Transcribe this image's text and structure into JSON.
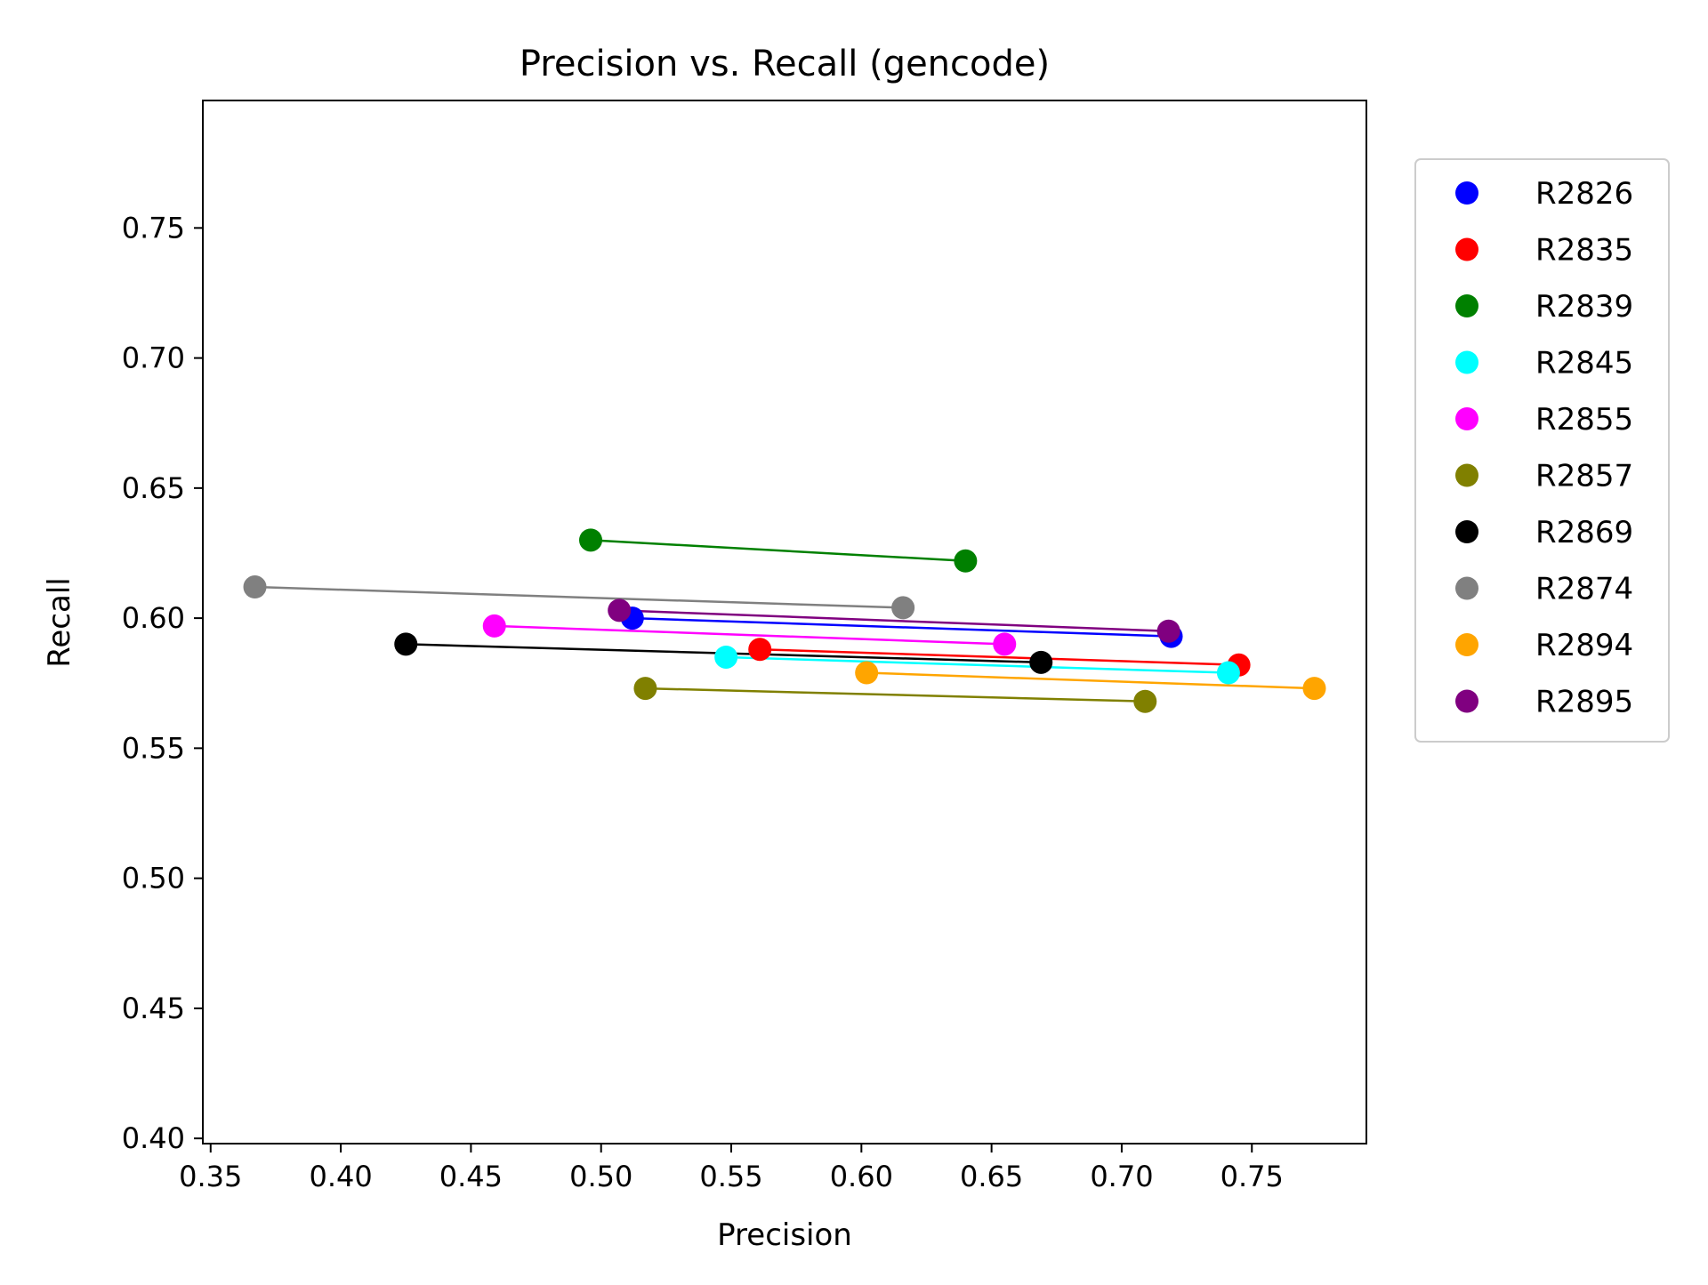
{
  "chart_data": {
    "type": "scatter",
    "title": "Precision vs. Recall (gencode)",
    "xlabel": "Precision",
    "ylabel": "Recall",
    "xlim": [
      0.347,
      0.794
    ],
    "ylim": [
      0.398,
      0.799
    ],
    "xticks": [
      0.35,
      0.4,
      0.45,
      0.5,
      0.55,
      0.6,
      0.65,
      0.7,
      0.75
    ],
    "xtick_labels": [
      "0.35",
      "0.40",
      "0.45",
      "0.50",
      "0.55",
      "0.60",
      "0.65",
      "0.70",
      "0.75"
    ],
    "yticks": [
      0.4,
      0.45,
      0.5,
      0.55,
      0.6,
      0.65,
      0.7,
      0.75
    ],
    "ytick_labels": [
      "0.40",
      "0.45",
      "0.50",
      "0.55",
      "0.60",
      "0.65",
      "0.70",
      "0.75"
    ],
    "legend_position": "outside-right",
    "grid": false,
    "series": [
      {
        "name": "R2826",
        "color": "#0000ff",
        "points": [
          {
            "x": 0.512,
            "y": 0.6
          },
          {
            "x": 0.719,
            "y": 0.593
          }
        ]
      },
      {
        "name": "R2835",
        "color": "#ff0000",
        "points": [
          {
            "x": 0.561,
            "y": 0.588
          },
          {
            "x": 0.745,
            "y": 0.582
          }
        ]
      },
      {
        "name": "R2839",
        "color": "#008000",
        "points": [
          {
            "x": 0.496,
            "y": 0.63
          },
          {
            "x": 0.64,
            "y": 0.622
          }
        ]
      },
      {
        "name": "R2845",
        "color": "#00ffff",
        "points": [
          {
            "x": 0.548,
            "y": 0.585
          },
          {
            "x": 0.741,
            "y": 0.579
          }
        ]
      },
      {
        "name": "R2855",
        "color": "#ff00ff",
        "points": [
          {
            "x": 0.459,
            "y": 0.597
          },
          {
            "x": 0.655,
            "y": 0.59
          }
        ]
      },
      {
        "name": "R2857",
        "color": "#808000",
        "points": [
          {
            "x": 0.517,
            "y": 0.573
          },
          {
            "x": 0.709,
            "y": 0.568
          }
        ]
      },
      {
        "name": "R2869",
        "color": "#000000",
        "points": [
          {
            "x": 0.425,
            "y": 0.59
          },
          {
            "x": 0.669,
            "y": 0.583
          }
        ]
      },
      {
        "name": "R2874",
        "color": "#808080",
        "points": [
          {
            "x": 0.367,
            "y": 0.612
          },
          {
            "x": 0.616,
            "y": 0.604
          }
        ]
      },
      {
        "name": "R2894",
        "color": "#ffa500",
        "points": [
          {
            "x": 0.602,
            "y": 0.579
          },
          {
            "x": 0.774,
            "y": 0.573
          }
        ]
      },
      {
        "name": "R2895",
        "color": "#800080",
        "points": [
          {
            "x": 0.507,
            "y": 0.603
          },
          {
            "x": 0.718,
            "y": 0.595
          }
        ]
      }
    ]
  }
}
